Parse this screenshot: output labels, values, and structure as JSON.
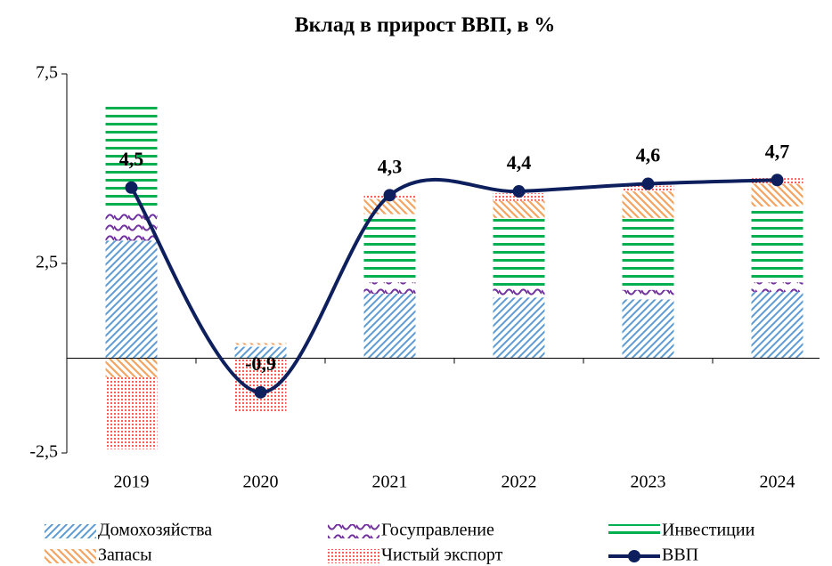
{
  "chart_data": {
    "type": "stacked_bar_line",
    "title": "Вклад в прирост ВВП, в %",
    "categories": [
      "2019",
      "2020",
      "2021",
      "2022",
      "2023",
      "2024"
    ],
    "ylim": [
      -2.5,
      7.5
    ],
    "yticks": [
      {
        "value": -2.5,
        "label": "-2,5"
      },
      {
        "value": 2.5,
        "label": "2,5"
      },
      {
        "value": 7.5,
        "label": "7,5"
      }
    ],
    "series": [
      {
        "name": "Домохозяйства",
        "color": "#5b9bd5",
        "pattern": "diagonal",
        "values": [
          3.1,
          0.3,
          1.7,
          1.6,
          1.55,
          1.75
        ]
      },
      {
        "name": "Госуправление",
        "color": "#7030a0",
        "pattern": "wave",
        "values": [
          0.8,
          0.0,
          0.3,
          0.25,
          0.25,
          0.25
        ]
      },
      {
        "name": "Инвестиции",
        "color": "#00b050",
        "pattern": "horizontal",
        "values": [
          2.75,
          0.05,
          1.8,
          1.85,
          1.9,
          2.0
        ]
      },
      {
        "name": "Запасы",
        "color": "#f4a460",
        "pattern": "diagonal-back",
        "values": [
          -0.5,
          0.05,
          0.4,
          0.45,
          0.7,
          0.6
        ]
      },
      {
        "name": "Чистый экспорт",
        "color": "#ff5b5b",
        "pattern": "dots",
        "values": [
          -1.9,
          -1.4,
          0.1,
          0.2,
          0.15,
          0.15
        ]
      }
    ],
    "line": {
      "name": "ВВП",
      "color": "#0d1f5c",
      "values": [
        4.5,
        -0.9,
        4.3,
        4.4,
        4.6,
        4.7
      ],
      "value_labels": [
        "4,5",
        "-0,9",
        "4,3",
        "4,4",
        "4,6",
        "4,7"
      ]
    }
  }
}
